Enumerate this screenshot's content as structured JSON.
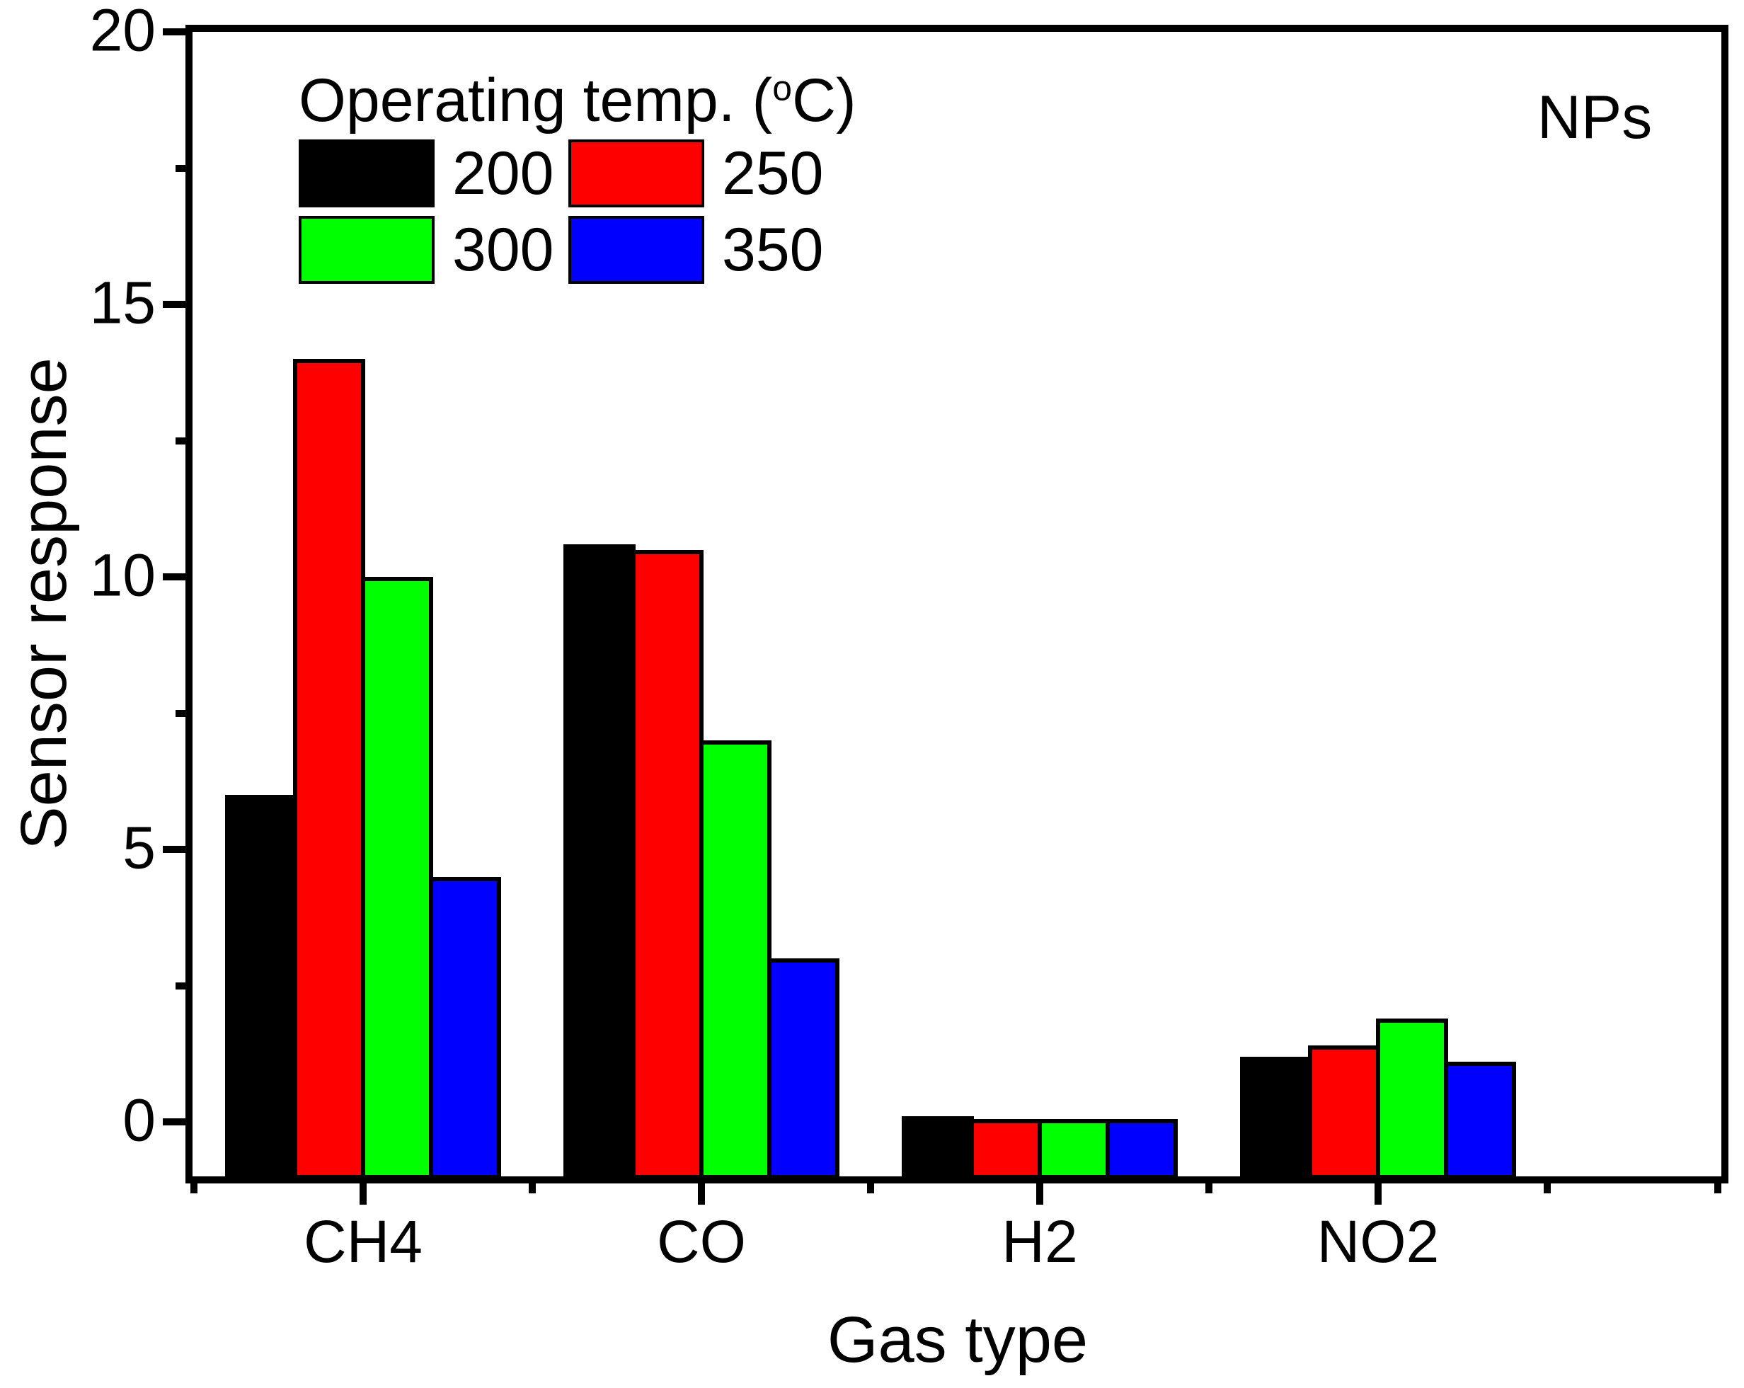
{
  "figure": {
    "ylabel": "Sensor response",
    "xlabel": "Gas type",
    "annotation": "NPs"
  },
  "legend": {
    "title_prefix": "Operating temp. (",
    "title_sup": "o",
    "title_suffix": "C)",
    "entries": [
      {
        "label": "200",
        "color": "#000000"
      },
      {
        "label": "250",
        "color": "#FF0000"
      },
      {
        "label": "300",
        "color": "#00FF00"
      },
      {
        "label": "350",
        "color": "#0000FF"
      }
    ]
  },
  "chart_data": {
    "type": "bar",
    "title": "",
    "xlabel": "Gas type",
    "ylabel": "Sensor response",
    "annotation": "NPs",
    "categories": [
      "CH4",
      "CO",
      "H2",
      "NO2"
    ],
    "series": [
      {
        "name": "200",
        "color": "#000000",
        "values": [
          6.0,
          10.6,
          0.1,
          1.2
        ]
      },
      {
        "name": "250",
        "color": "#FF0000",
        "values": [
          14.0,
          10.5,
          0.05,
          1.4
        ]
      },
      {
        "name": "300",
        "color": "#00FF00",
        "values": [
          10.0,
          7.0,
          0.05,
          1.9
        ]
      },
      {
        "name": "350",
        "color": "#0000FF",
        "values": [
          4.5,
          3.0,
          0.05,
          1.1
        ]
      }
    ],
    "ylim": [
      -1,
      20
    ],
    "yticks": [
      0,
      5,
      10,
      15,
      20
    ],
    "yminorticks": [
      2.5,
      7.5,
      12.5,
      17.5
    ],
    "bar_baseline": "axis-floor",
    "grid": false,
    "legend_title": "Operating temp. (oC)",
    "legend_position": "upper-left",
    "frame": "full-box"
  }
}
